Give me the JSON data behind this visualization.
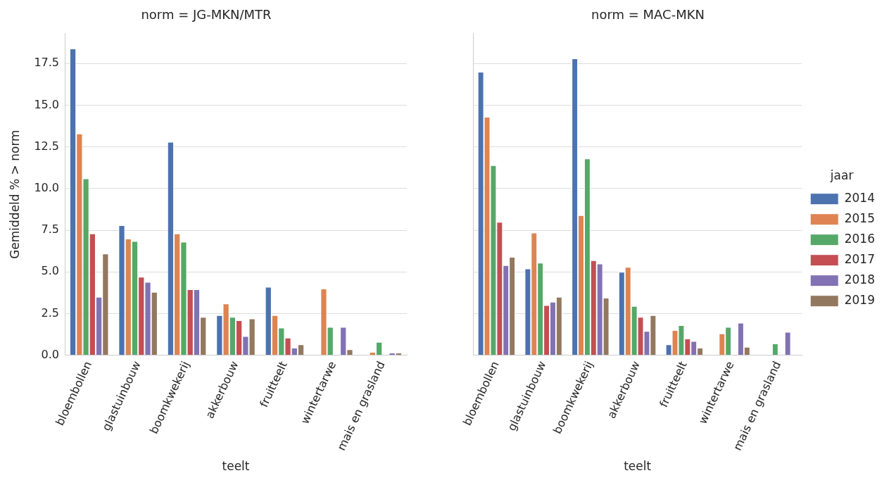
{
  "chart_data": [
    {
      "type": "bar",
      "title": "norm = JG-MKN/MTR",
      "xlabel": "teelt",
      "ylabel": "Gemiddeld % > norm",
      "categories": [
        "bloembollen",
        "glastuinbouw",
        "boomkwekerij",
        "akkerbouw",
        "fruitteelt",
        "wintertarwe",
        "mais en grasland"
      ],
      "series": [
        {
          "color": "#4c72b0",
          "values": [
            18.4,
            7.8,
            12.8,
            2.4,
            4.1,
            null,
            null
          ]
        },
        {
          "color": "#dd8452",
          "values": [
            13.3,
            7.0,
            7.3,
            3.1,
            2.4,
            4.0,
            0.2
          ]
        },
        {
          "color": "#55a868",
          "values": [
            10.6,
            6.85,
            6.8,
            2.3,
            1.65,
            1.7,
            0.8
          ]
        },
        {
          "color": "#c44e52",
          "values": [
            7.3,
            4.7,
            3.95,
            2.1,
            1.05,
            null,
            null
          ]
        },
        {
          "color": "#8172b3",
          "values": [
            3.5,
            4.4,
            3.95,
            1.15,
            0.45,
            1.7,
            0.15
          ]
        },
        {
          "color": "#937860",
          "values": [
            6.1,
            3.8,
            2.3,
            2.2,
            0.65,
            0.35,
            0.15
          ]
        }
      ],
      "ylim": [
        0,
        19.3
      ],
      "yticks": [
        {
          "value": 0,
          "label": "0.0"
        },
        2.5,
        {
          "value": 5,
          "label": "5.0"
        },
        7.5,
        {
          "value": 10,
          "label": "10.0"
        },
        12.5,
        {
          "value": 15,
          "label": "15.0"
        },
        17.5
      ],
      "grid": "y",
      "legend": false
    },
    {
      "type": "bar",
      "title": "norm = MAC-MKN",
      "xlabel": "teelt",
      "legend_title": "jaar",
      "categories": [
        "bloembollen",
        "glastuinbouw",
        "boomkwekerij",
        "akkerbouw",
        "fruitteelt",
        "wintertarwe",
        "mais en grasland"
      ],
      "series": [
        {
          "name": "2014",
          "color": "#4c72b0",
          "values": [
            17.0,
            5.2,
            17.8,
            5.0,
            0.65,
            null,
            null
          ]
        },
        {
          "name": "2015",
          "color": "#dd8452",
          "values": [
            14.3,
            7.35,
            8.4,
            5.3,
            1.5,
            1.3,
            null
          ]
        },
        {
          "name": "2016",
          "color": "#55a868",
          "values": [
            11.4,
            5.55,
            11.8,
            2.95,
            1.8,
            1.7,
            0.7
          ]
        },
        {
          "name": "2017",
          "color": "#c44e52",
          "values": [
            8.0,
            3.0,
            5.7,
            2.3,
            1.0,
            null,
            null
          ]
        },
        {
          "name": "2018",
          "color": "#8172b3",
          "values": [
            5.4,
            3.2,
            5.5,
            1.45,
            0.85,
            1.95,
            1.4
          ]
        },
        {
          "name": "2019",
          "color": "#937860",
          "values": [
            5.9,
            3.5,
            3.45,
            2.4,
            0.45,
            0.5,
            null
          ]
        }
      ],
      "ylim": [
        0,
        19.3
      ],
      "yticks": [
        0,
        2.5,
        5,
        7.5,
        10,
        12.5,
        15,
        17.5
      ],
      "grid": "y",
      "legend": "right",
      "tick_labels": "x"
    }
  ]
}
